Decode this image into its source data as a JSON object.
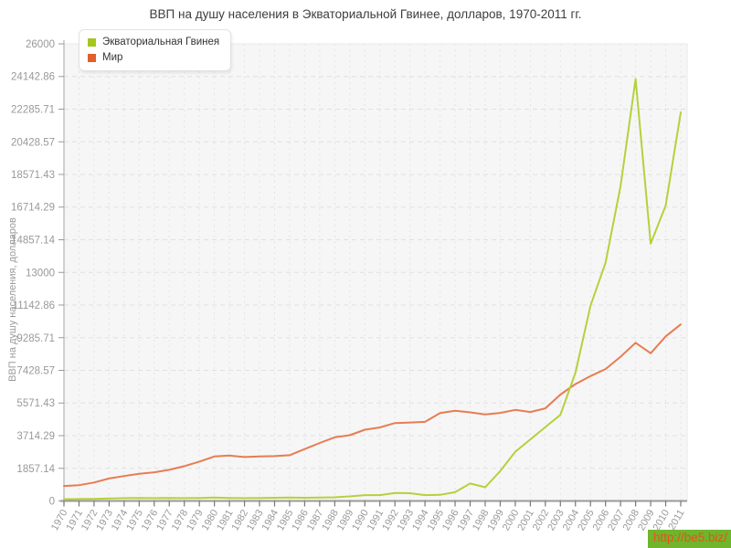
{
  "header": {
    "title": "ВВП на душу населения в Экваториальной Гвинее, долларов, 1970-2011 гг."
  },
  "legend": {
    "items": [
      {
        "label": "Экваториальная Гвинея",
        "swatch_color": "#a4c61e"
      },
      {
        "label": "Мир",
        "swatch_color": "#e15f2c"
      }
    ]
  },
  "watermark": {
    "text": "http://be5.biz/",
    "bg_color": "#70b52c",
    "text_color": "#e8531a"
  },
  "colors": {
    "plot_background": "#f6f6f6",
    "grid_line": "#e0e0e0",
    "axis_line": "#aaaaaa",
    "axis_text": "#999999",
    "title_text": "#3d3d3d"
  },
  "chart_data": {
    "type": "line",
    "title": "ВВП на душу населения в Экваториальной Гвинее, долларов, 1970-2011 гг.",
    "xlabel": "",
    "ylabel": "ВВП на душу населения, долларов",
    "ylim": [
      0,
      26000
    ],
    "grid": true,
    "legend_position": "top-left",
    "y_ticks": [
      "0",
      "1857.14",
      "3714.29",
      "5571.43",
      "7428.57",
      "9285.71",
      "11142.86",
      "13000",
      "14857.14",
      "16714.29",
      "18571.43",
      "20428.57",
      "22285.71",
      "24142.86",
      "26000"
    ],
    "x": [
      1970,
      1971,
      1972,
      1973,
      1974,
      1975,
      1976,
      1977,
      1978,
      1979,
      1980,
      1981,
      1982,
      1983,
      1984,
      1985,
      1986,
      1987,
      1988,
      1989,
      1990,
      1991,
      1992,
      1993,
      1994,
      1995,
      1996,
      1997,
      1998,
      1999,
      2000,
      2001,
      2002,
      2003,
      2004,
      2005,
      2006,
      2007,
      2008,
      2009,
      2010,
      2011
    ],
    "series": [
      {
        "name": "Экваториальная Гвинея",
        "color": "#b4d13c",
        "values": [
          100,
          110,
          120,
          140,
          160,
          170,
          160,
          170,
          160,
          170,
          190,
          170,
          160,
          170,
          180,
          190,
          180,
          190,
          210,
          260,
          330,
          330,
          450,
          440,
          330,
          350,
          500,
          990,
          780,
          1700,
          2800,
          3500,
          4200,
          4900,
          7300,
          11100,
          13550,
          17900,
          24000,
          14630,
          16800,
          22100
        ]
      },
      {
        "name": "Мир",
        "color": "#e87c52",
        "values": [
          850,
          900,
          1050,
          1280,
          1420,
          1550,
          1630,
          1770,
          1980,
          2240,
          2530,
          2580,
          2500,
          2530,
          2550,
          2600,
          2950,
          3300,
          3620,
          3740,
          4050,
          4180,
          4430,
          4460,
          4500,
          5000,
          5130,
          5040,
          4920,
          5010,
          5180,
          5060,
          5270,
          6050,
          6650,
          7100,
          7500,
          8200,
          9000,
          8400,
          9360,
          10040
        ]
      }
    ]
  }
}
